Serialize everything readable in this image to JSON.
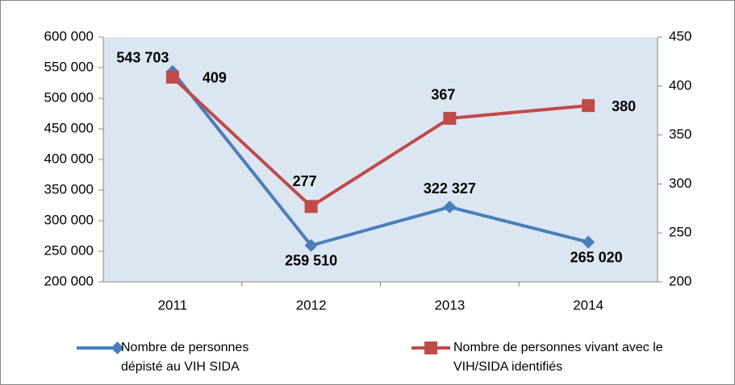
{
  "chart_data": {
    "type": "line",
    "categories": [
      "2011",
      "2012",
      "2013",
      "2014"
    ],
    "series": [
      {
        "name": "Nombre de personnes dépisté au VIH SIDA",
        "color": "#4a7ebb",
        "marker": "diamond",
        "values": [
          543703,
          259510,
          322327,
          265020
        ],
        "value_labels": [
          "543 703",
          "259 510",
          "322 327",
          "265 020"
        ]
      },
      {
        "name": "Nombre de personnes vivant avec le VIH/SIDA identifiés",
        "color": "#be4b48",
        "marker": "square",
        "axis": "y2",
        "values": [
          409,
          277,
          367,
          380
        ]
      }
    ],
    "ylim": [
      200000,
      600000
    ],
    "yticks": [
      {
        "value": 200000,
        "label": "200 000"
      },
      {
        "value": 250000,
        "label": "250 000"
      },
      {
        "value": 300000,
        "label": "300 000"
      },
      {
        "value": 350000,
        "label": "350 000"
      },
      {
        "value": 400000,
        "label": "400 000"
      },
      {
        "value": 450000,
        "label": "450 000"
      },
      {
        "value": 500000,
        "label": "500 000"
      },
      {
        "value": 550000,
        "label": "550 000"
      },
      {
        "value": 600000,
        "label": "600 000"
      }
    ],
    "y2lim": [
      200,
      450
    ],
    "y2ticks": [
      200,
      250,
      300,
      350,
      400,
      450
    ],
    "legend": "bottom",
    "grid": false
  }
}
